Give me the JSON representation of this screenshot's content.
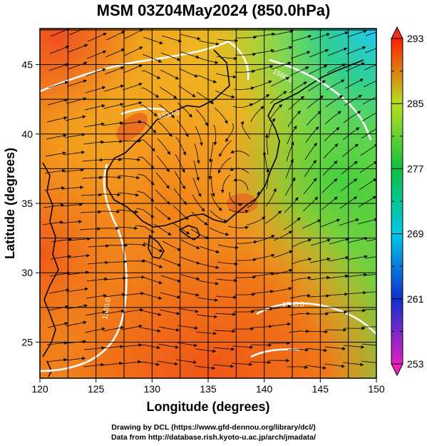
{
  "title": "MSM 03Z04May2024 (850.0hPa)",
  "axes": {
    "xlabel": "Longitude (degrees)",
    "ylabel": "Latitude  (degrees)",
    "xlim": [
      120,
      150
    ],
    "ylim": [
      22.4,
      47.6
    ],
    "xticks": [
      120,
      125,
      130,
      135,
      140,
      145,
      150
    ],
    "yticks": [
      25,
      30,
      35,
      40,
      45
    ],
    "grid": true
  },
  "colorbar": {
    "range": [
      253,
      293
    ],
    "labels": [
      253,
      261,
      269,
      277,
      285,
      293
    ],
    "colors": [
      "#e020c0",
      "#1030d0",
      "#00c8e8",
      "#10c040",
      "#b8e020",
      "#ff2000"
    ]
  },
  "contour_labels": [
    "1530.0",
    "1560.0",
    "1530.0",
    "1560.0"
  ],
  "credits": {
    "line1": "Drawing by DCL (https://www.gfd-dennou.org/library/dcl/)",
    "line2": "Data from http://database.rish.kyoto-u.ac.jp/arch/jmadata/"
  }
}
